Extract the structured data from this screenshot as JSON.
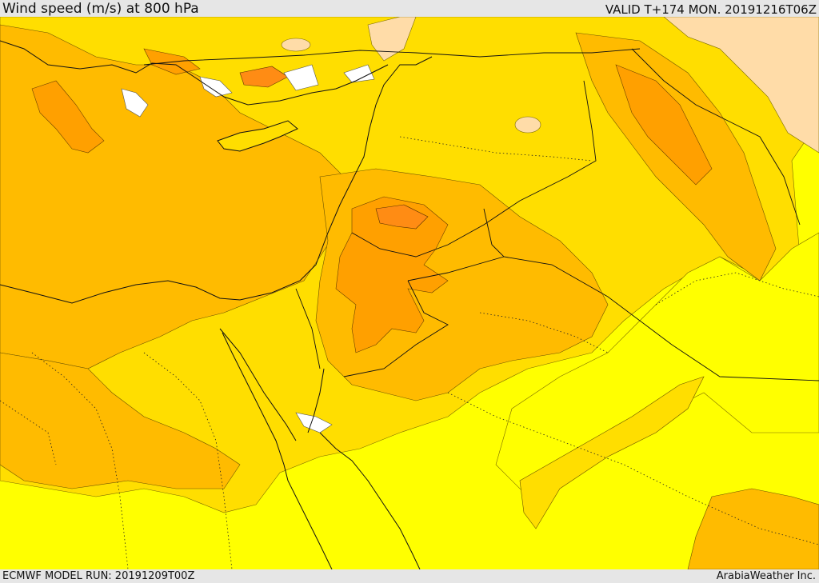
{
  "header": {
    "title": "Wind speed (m/s) at 800 hPa",
    "valid_time": "VALID T+174 MON. 20191216T06Z"
  },
  "footer": {
    "model_run": "ECMWF MODEL RUN: 20191209T00Z",
    "credit": "ArabiaWeather Inc."
  },
  "map": {
    "field": "wind speed",
    "level": "800 hPa",
    "colors": {
      "weakest": "#ffffff",
      "light": "#ffdca8",
      "yellow": "#ffff00",
      "gold": "#ffde00",
      "amber": "#ffbb00",
      "orange": "#ffa000",
      "dark_orange": "#ff8c14"
    }
  }
}
